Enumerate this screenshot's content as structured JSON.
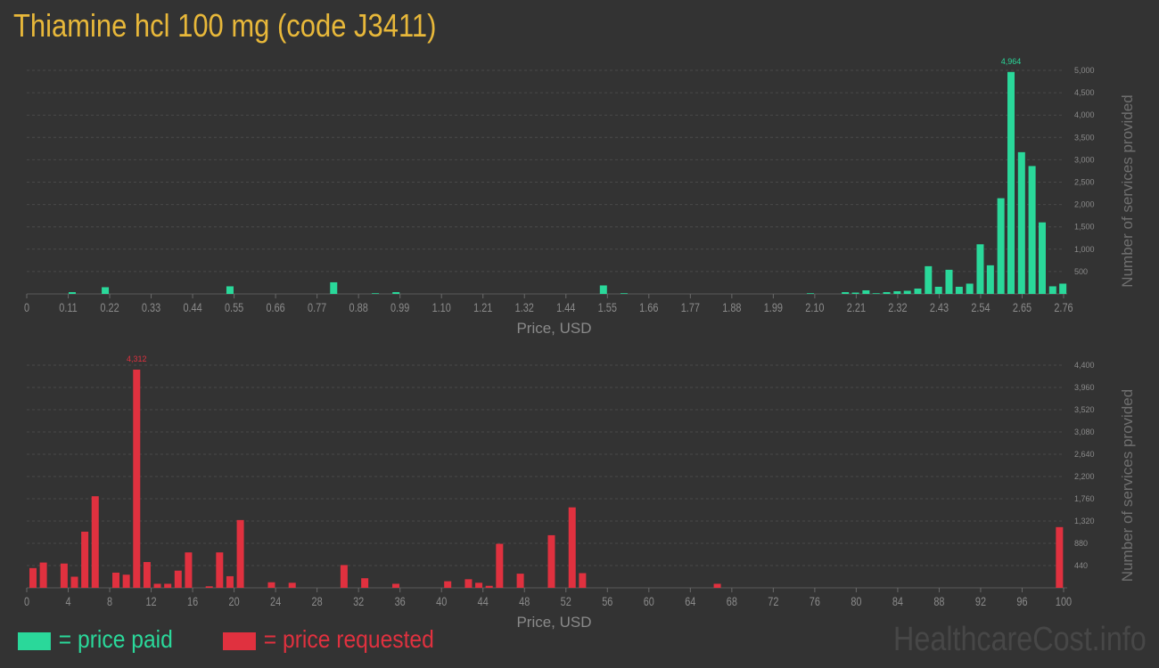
{
  "page": {
    "title": "Thiamine hcl 100 mg (code J3411)",
    "watermark": "HealthcareCost.info"
  },
  "legend": {
    "paid_label": "= price paid",
    "requested_label": "= price requested"
  },
  "colors": {
    "paid": "#2ad89a",
    "requested": "#e0313f",
    "title": "#e8b83a",
    "background": "#333333",
    "axis_text": "#8a8a8a"
  },
  "chart_data": [
    {
      "type": "bar",
      "xlabel": "Price, USD",
      "ylabel": "Number of services provided",
      "xlim": [
        0,
        2.76
      ],
      "ylim": [
        0,
        5000
      ],
      "xticks": [
        "0",
        "0.11",
        "0.22",
        "0.33",
        "0.44",
        "0.55",
        "0.66",
        "0.77",
        "0.88",
        "0.99",
        "1.10",
        "1.21",
        "1.32",
        "1.44",
        "1.55",
        "1.66",
        "1.77",
        "1.88",
        "1.99",
        "2.10",
        "2.21",
        "2.32",
        "2.43",
        "2.54",
        "2.65",
        "2.76"
      ],
      "yticks": [
        "500",
        "1,000",
        "1,500",
        "2,000",
        "2,500",
        "3,000",
        "3,500",
        "4,000",
        "4,500",
        "5,000"
      ],
      "ytick_values": [
        500,
        1000,
        1500,
        2000,
        2500,
        3000,
        3500,
        4000,
        4500,
        5000
      ],
      "peak_label": "4,964",
      "grid": true,
      "series": [
        {
          "color": "#2ad89a",
          "points": [
            [
              0.121,
              40
            ],
            [
              0.209,
              150
            ],
            [
              0.541,
              170
            ],
            [
              0.817,
              260
            ],
            [
              0.928,
              15
            ],
            [
              0.983,
              40
            ],
            [
              1.535,
              190
            ],
            [
              1.59,
              15
            ],
            [
              2.086,
              15
            ],
            [
              2.179,
              40
            ],
            [
              2.206,
              30
            ],
            [
              2.234,
              80
            ],
            [
              2.261,
              15
            ],
            [
              2.289,
              40
            ],
            [
              2.317,
              60
            ],
            [
              2.344,
              70
            ],
            [
              2.372,
              120
            ],
            [
              2.4,
              620
            ],
            [
              2.427,
              160
            ],
            [
              2.455,
              540
            ],
            [
              2.482,
              160
            ],
            [
              2.51,
              230
            ],
            [
              2.538,
              1110
            ],
            [
              2.565,
              640
            ],
            [
              2.593,
              2140
            ],
            [
              2.62,
              4964
            ],
            [
              2.648,
              3170
            ],
            [
              2.676,
              2860
            ],
            [
              2.703,
              1600
            ],
            [
              2.731,
              170
            ],
            [
              2.758,
              230
            ]
          ]
        }
      ]
    },
    {
      "type": "bar",
      "xlabel": "Price, USD",
      "ylabel": "Number of services provided",
      "xlim": [
        0,
        100
      ],
      "ylim": [
        0,
        4400
      ],
      "xticks": [
        "0",
        "4",
        "8",
        "12",
        "16",
        "20",
        "24",
        "28",
        "32",
        "36",
        "40",
        "44",
        "48",
        "52",
        "56",
        "60",
        "64",
        "68",
        "72",
        "76",
        "80",
        "84",
        "88",
        "92",
        "96",
        "100"
      ],
      "yticks": [
        "440",
        "880",
        "1,320",
        "1,760",
        "2,200",
        "2,640",
        "3,080",
        "3,520",
        "3,960",
        "4,400"
      ],
      "ytick_values": [
        440,
        880,
        1320,
        1760,
        2200,
        2640,
        3080,
        3520,
        3960,
        4400
      ],
      "peak_label": "4,312",
      "grid": true,
      "series": [
        {
          "color": "#e0313f",
          "points": [
            [
              0.6,
              390
            ],
            [
              1.6,
              500
            ],
            [
              3.6,
              480
            ],
            [
              4.6,
              220
            ],
            [
              5.6,
              1110
            ],
            [
              6.6,
              1810
            ],
            [
              8.6,
              300
            ],
            [
              9.6,
              260
            ],
            [
              10.6,
              4312
            ],
            [
              11.6,
              510
            ],
            [
              12.6,
              80
            ],
            [
              13.6,
              80
            ],
            [
              14.6,
              340
            ],
            [
              15.6,
              700
            ],
            [
              17.6,
              30
            ],
            [
              18.6,
              700
            ],
            [
              19.6,
              230
            ],
            [
              20.6,
              1340
            ],
            [
              23.6,
              110
            ],
            [
              25.6,
              100
            ],
            [
              30.6,
              450
            ],
            [
              32.6,
              190
            ],
            [
              35.6,
              80
            ],
            [
              40.6,
              130
            ],
            [
              42.6,
              170
            ],
            [
              43.6,
              100
            ],
            [
              44.6,
              40
            ],
            [
              45.6,
              870
            ],
            [
              47.6,
              280
            ],
            [
              50.6,
              1040
            ],
            [
              52.6,
              1590
            ],
            [
              53.6,
              290
            ],
            [
              66.6,
              80
            ],
            [
              99.6,
              1200
            ]
          ]
        }
      ]
    }
  ]
}
